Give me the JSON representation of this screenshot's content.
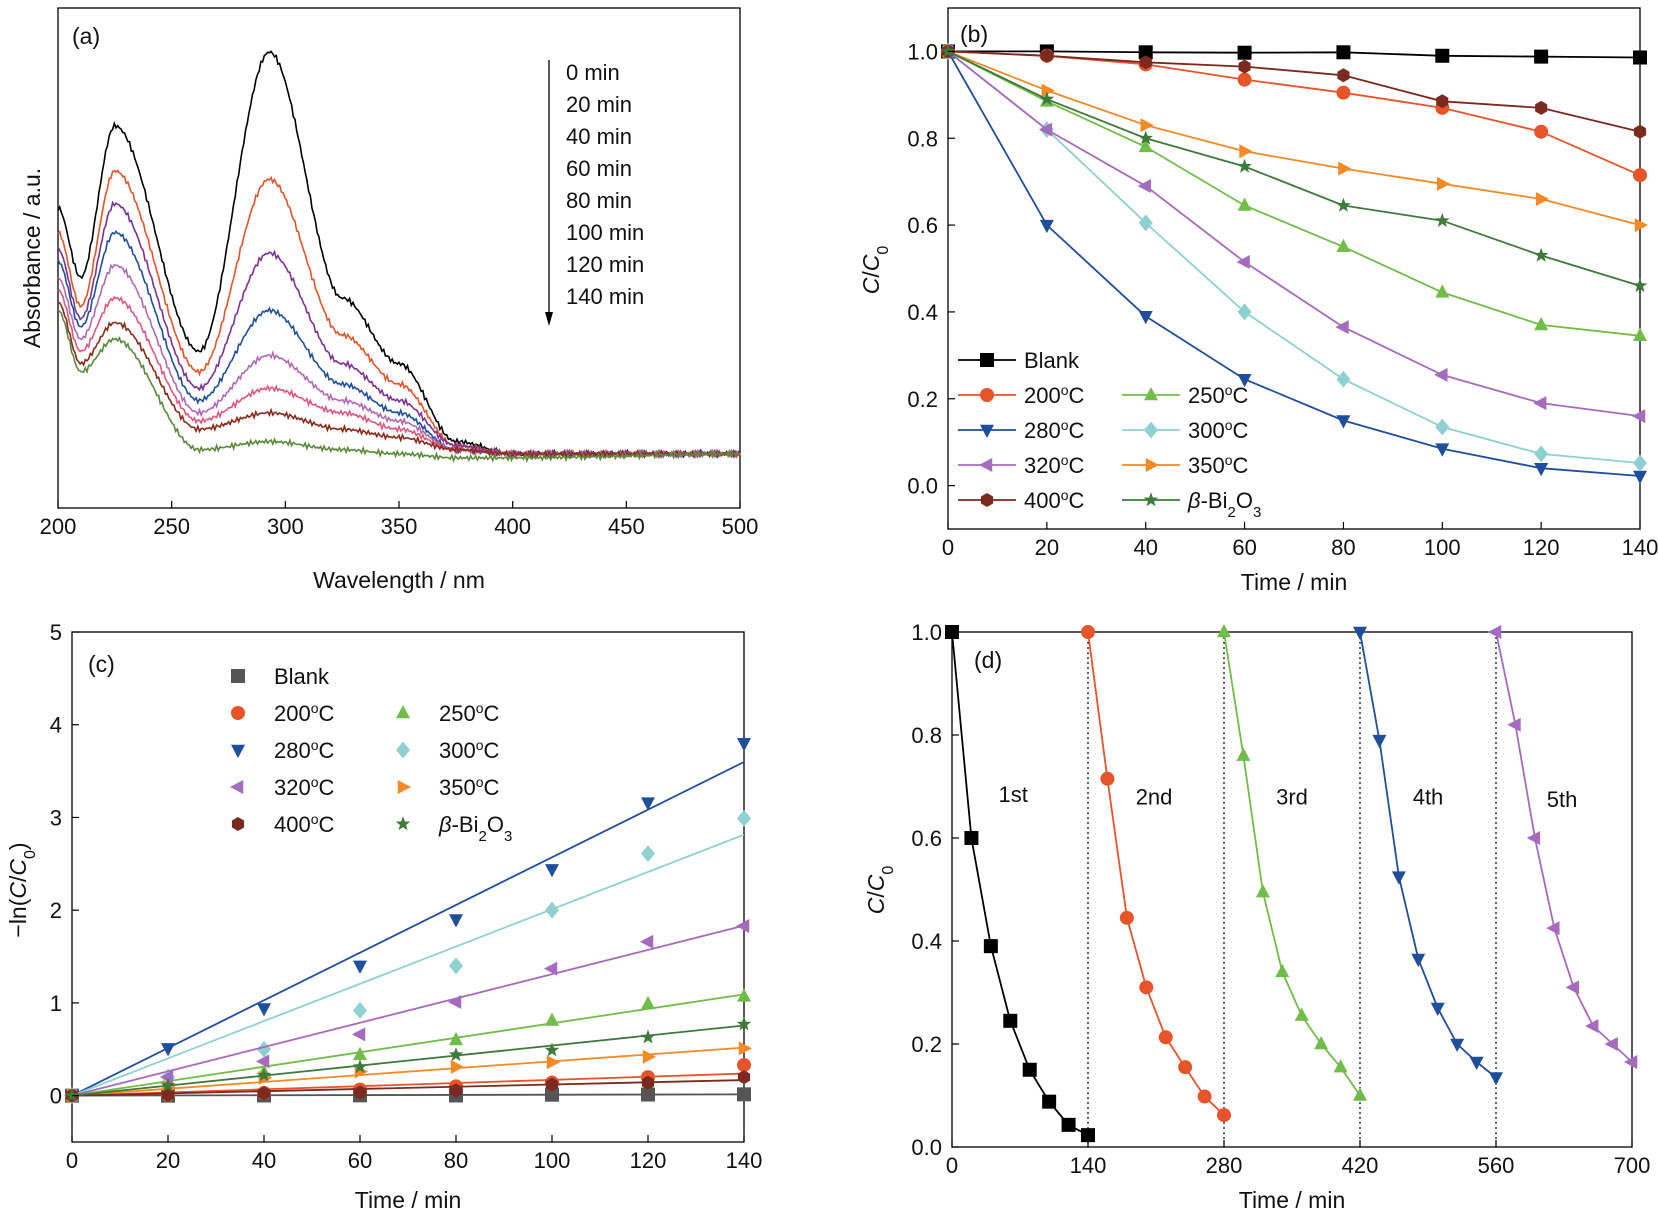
{
  "panels": {
    "a": {
      "label": "(a)"
    },
    "b": {
      "label": "(b)"
    },
    "c": {
      "label": "(c)"
    },
    "d": {
      "label": "(d)"
    }
  },
  "chart_data": [
    {
      "id": "a",
      "type": "line",
      "xlabel": "Wavelength / nm",
      "ylabel": "Absorbance / a.u.",
      "xlim": [
        200,
        500
      ],
      "xticks": [
        "200",
        "250",
        "300",
        "350",
        "400",
        "450",
        "500"
      ],
      "legend": [
        "0 min",
        "20 min",
        "40 min",
        "60 min",
        "80 min",
        "100 min",
        "120 min",
        "140 min"
      ],
      "legend_position": "top-right",
      "colors": [
        "#000000",
        "#e8542a",
        "#7b3294",
        "#1f4e9c",
        "#b06ab3",
        "#e0577e",
        "#8b2a1a",
        "#5a8a3a"
      ],
      "peaks": {
        "wavelengths": [
          200,
          210,
          225,
          262,
          293,
          325,
          350,
          375,
          400,
          500
        ],
        "values": [
          [
            0.62,
            0.45,
            0.82,
            0.27,
            1.0,
            0.4,
            0.24,
            0.05,
            0.02,
            0.02
          ],
          [
            0.56,
            0.38,
            0.71,
            0.22,
            0.69,
            0.31,
            0.19,
            0.04,
            0.02,
            0.02
          ],
          [
            0.52,
            0.35,
            0.63,
            0.18,
            0.51,
            0.24,
            0.15,
            0.04,
            0.02,
            0.02
          ],
          [
            0.49,
            0.33,
            0.56,
            0.15,
            0.37,
            0.19,
            0.12,
            0.03,
            0.02,
            0.02
          ],
          [
            0.45,
            0.3,
            0.48,
            0.12,
            0.26,
            0.15,
            0.1,
            0.03,
            0.02,
            0.02
          ],
          [
            0.42,
            0.27,
            0.4,
            0.1,
            0.18,
            0.12,
            0.08,
            0.03,
            0.02,
            0.02
          ],
          [
            0.39,
            0.24,
            0.34,
            0.08,
            0.12,
            0.08,
            0.06,
            0.03,
            0.02,
            0.02
          ],
          [
            0.37,
            0.22,
            0.3,
            0.03,
            0.05,
            0.03,
            0.02,
            0.01,
            0.01,
            0.02
          ]
        ]
      }
    },
    {
      "id": "b",
      "type": "line",
      "xlabel": "Time / min",
      "ylabel": "C/C0",
      "xlim": [
        0,
        140
      ],
      "ylim": [
        -0.1,
        1.1
      ],
      "xticks": [
        "0",
        "20",
        "40",
        "60",
        "80",
        "100",
        "120",
        "140"
      ],
      "yticks": [
        "0.0",
        "0.2",
        "0.4",
        "0.6",
        "0.8",
        "1.0"
      ],
      "legend_position": "bottom-left",
      "x": [
        0,
        20,
        40,
        60,
        80,
        100,
        120,
        140
      ],
      "series": [
        {
          "name": "Blank",
          "color": "#000000",
          "marker": "square",
          "values": [
            1.0,
            1.0,
            0.998,
            0.997,
            0.998,
            0.99,
            0.988,
            0.986
          ]
        },
        {
          "name": "200°C",
          "color": "#e8542a",
          "marker": "circle",
          "values": [
            1.0,
            0.99,
            0.97,
            0.935,
            0.905,
            0.87,
            0.815,
            0.715
          ]
        },
        {
          "name": "250°C",
          "color": "#72bd4a",
          "marker": "triangle-up",
          "values": [
            1.0,
            0.885,
            0.78,
            0.645,
            0.55,
            0.445,
            0.37,
            0.345
          ]
        },
        {
          "name": "280°C",
          "color": "#1f4e9c",
          "marker": "triangle-down",
          "values": [
            1.0,
            0.6,
            0.39,
            0.245,
            0.15,
            0.085,
            0.04,
            0.022
          ]
        },
        {
          "name": "300°C",
          "color": "#8fd0d1",
          "marker": "diamond",
          "values": [
            1.0,
            0.82,
            0.605,
            0.4,
            0.245,
            0.135,
            0.073,
            0.052
          ]
        },
        {
          "name": "320°C",
          "color": "#a66bbf",
          "marker": "triangle-left",
          "values": [
            1.0,
            0.82,
            0.69,
            0.515,
            0.365,
            0.255,
            0.19,
            0.16
          ]
        },
        {
          "name": "350°C",
          "color": "#f48a25",
          "marker": "triangle-right",
          "values": [
            1.0,
            0.91,
            0.83,
            0.77,
            0.73,
            0.695,
            0.66,
            0.6
          ]
        },
        {
          "name": "400°C",
          "color": "#7b2a1f",
          "marker": "hexagon",
          "values": [
            1.0,
            0.99,
            0.975,
            0.965,
            0.945,
            0.885,
            0.87,
            0.815
          ]
        },
        {
          "name": "β-Bi2O3",
          "color": "#3f7a3a",
          "marker": "star",
          "values": [
            1.0,
            0.89,
            0.8,
            0.735,
            0.645,
            0.61,
            0.53,
            0.46
          ]
        }
      ]
    },
    {
      "id": "c",
      "type": "scatter",
      "xlabel": "Time / min",
      "ylabel": "−ln(C/C0)",
      "xlim": [
        0,
        140
      ],
      "ylim": [
        -0.5,
        5
      ],
      "xticks": [
        "0",
        "20",
        "40",
        "60",
        "80",
        "100",
        "120",
        "140"
      ],
      "yticks": [
        "0",
        "1",
        "2",
        "3",
        "4",
        "5"
      ],
      "legend_position": "top-left",
      "x": [
        0,
        20,
        40,
        60,
        80,
        100,
        120,
        140
      ],
      "series": [
        {
          "name": "Blank",
          "color": "#555555",
          "marker": "square",
          "fit_slope": 0.0001,
          "values": [
            0,
            0.0,
            0.002,
            0.003,
            0.002,
            0.01,
            0.012,
            0.014
          ]
        },
        {
          "name": "200°C",
          "color": "#e8542a",
          "marker": "circle",
          "fit_slope": 0.0017,
          "values": [
            0,
            0.01,
            0.03,
            0.065,
            0.1,
            0.14,
            0.2,
            0.33
          ]
        },
        {
          "name": "250°C",
          "color": "#72bd4a",
          "marker": "triangle-up",
          "fit_slope": 0.0078,
          "values": [
            0,
            0.12,
            0.25,
            0.44,
            0.6,
            0.81,
            0.99,
            1.07
          ]
        },
        {
          "name": "280°C",
          "color": "#1f4e9c",
          "marker": "triangle-down",
          "fit_slope": 0.0257,
          "values": [
            0,
            0.51,
            0.94,
            1.4,
            1.9,
            2.44,
            3.16,
            3.8
          ]
        },
        {
          "name": "300°C",
          "color": "#8fd0d1",
          "marker": "diamond",
          "fit_slope": 0.0201,
          "values": [
            0,
            0.2,
            0.5,
            0.92,
            1.4,
            2.0,
            2.61,
            2.99
          ]
        },
        {
          "name": "320°C",
          "color": "#a66bbf",
          "marker": "triangle-left",
          "fit_slope": 0.0131,
          "values": [
            0,
            0.2,
            0.37,
            0.66,
            1.01,
            1.37,
            1.66,
            1.83
          ]
        },
        {
          "name": "350°C",
          "color": "#f48a25",
          "marker": "triangle-right",
          "fit_slope": 0.0037,
          "values": [
            0,
            0.09,
            0.19,
            0.26,
            0.31,
            0.36,
            0.42,
            0.51
          ]
        },
        {
          "name": "400°C",
          "color": "#7b2a1f",
          "marker": "hexagon",
          "fit_slope": 0.0012,
          "values": [
            0,
            0.01,
            0.025,
            0.035,
            0.057,
            0.12,
            0.14,
            0.2
          ]
        },
        {
          "name": "β-Bi2O3",
          "color": "#3f7a3a",
          "marker": "star",
          "fit_slope": 0.0054,
          "values": [
            0,
            0.11,
            0.22,
            0.31,
            0.44,
            0.49,
            0.63,
            0.77
          ]
        }
      ]
    },
    {
      "id": "d",
      "type": "line",
      "xlabel": "Time / min",
      "ylabel": "C/C0",
      "xlim": [
        0,
        700
      ],
      "ylim": [
        0,
        1
      ],
      "xticks": [
        "0",
        "140",
        "280",
        "420",
        "560",
        "700"
      ],
      "yticks": [
        "0.0",
        "0.2",
        "0.4",
        "0.6",
        "0.8",
        "1.0"
      ],
      "cycle_dividers": [
        140,
        280,
        420,
        560
      ],
      "cycles": [
        {
          "name": "1st",
          "label_x": 63,
          "label_y": 0.67,
          "color": "#000000",
          "marker": "square",
          "x": [
            0,
            20,
            40,
            60,
            80,
            100,
            120,
            140
          ],
          "values": [
            1.0,
            0.6,
            0.39,
            0.245,
            0.15,
            0.088,
            0.043,
            0.023
          ]
        },
        {
          "name": "2nd",
          "label_x": 208,
          "label_y": 0.665,
          "color": "#e8542a",
          "marker": "circle",
          "x": [
            140,
            160,
            180,
            200,
            220,
            240,
            260,
            280
          ],
          "values": [
            1.0,
            0.715,
            0.445,
            0.31,
            0.213,
            0.155,
            0.098,
            0.062
          ]
        },
        {
          "name": "3rd",
          "label_x": 350,
          "label_y": 0.665,
          "color": "#72bd4a",
          "marker": "triangle-up",
          "x": [
            280,
            300,
            320,
            340,
            360,
            380,
            400,
            420
          ],
          "values": [
            1.0,
            0.76,
            0.495,
            0.34,
            0.255,
            0.2,
            0.155,
            0.1
          ]
        },
        {
          "name": "4th",
          "label_x": 490,
          "label_y": 0.665,
          "color": "#1f4e9c",
          "marker": "triangle-down",
          "x": [
            420,
            440,
            460,
            480,
            500,
            520,
            540,
            560
          ],
          "values": [
            1.0,
            0.79,
            0.525,
            0.365,
            0.27,
            0.2,
            0.165,
            0.135
          ]
        },
        {
          "name": "5th",
          "label_x": 628,
          "label_y": 0.66,
          "color": "#a66bbf",
          "marker": "triangle-left",
          "x": [
            560,
            580,
            600,
            620,
            640,
            660,
            680,
            700
          ],
          "values": [
            1.0,
            0.82,
            0.6,
            0.425,
            0.31,
            0.235,
            0.2,
            0.165
          ]
        }
      ]
    }
  ]
}
